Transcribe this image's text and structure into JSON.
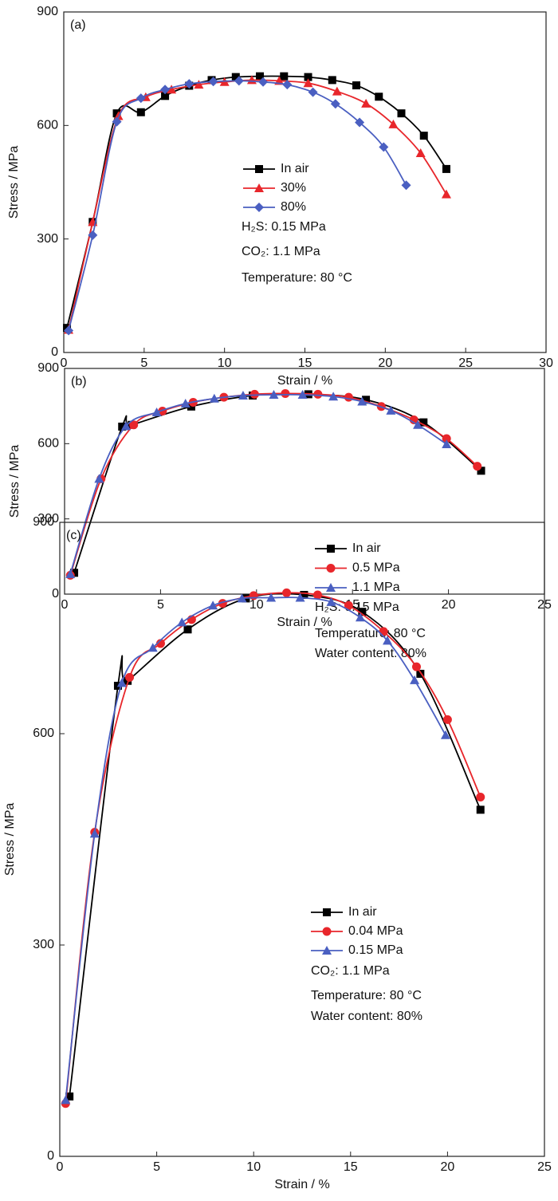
{
  "chart_data": [
    {
      "type": "line",
      "annotation": "(a)",
      "x_label": "Strain / %",
      "y_label": "Stress / MPa",
      "xlim": [
        0,
        30
      ],
      "xticks": [
        0,
        5,
        10,
        15,
        20,
        25,
        30
      ],
      "ylim": [
        0,
        900
      ],
      "yticks": [
        0,
        300,
        600,
        900
      ],
      "series": [
        {
          "name": "In air",
          "color": "#000000",
          "marker": "square",
          "x": [
            0.2,
            1.8,
            3.3,
            4.8,
            6.3,
            7.8,
            9.2,
            10.7,
            12.2,
            13.7,
            15.2,
            16.7,
            18.2,
            19.6,
            21.0,
            22.4,
            23.8
          ],
          "values": [
            65,
            345,
            632,
            635,
            678,
            705,
            720,
            728,
            730,
            730,
            728,
            720,
            706,
            676,
            632,
            573,
            485
          ]
        },
        {
          "name": "30%",
          "color": "#e8262b",
          "marker": "triangle",
          "x": [
            0.3,
            1.8,
            3.4,
            5.1,
            6.7,
            8.4,
            10.0,
            11.7,
            13.4,
            15.2,
            17.0,
            18.8,
            20.5,
            22.2,
            23.8
          ],
          "values": [
            60,
            345,
            625,
            675,
            695,
            708,
            715,
            720,
            718,
            712,
            690,
            658,
            603,
            527,
            418
          ]
        },
        {
          "name": "80%",
          "color": "#4a5fc1",
          "marker": "diamond",
          "x": [
            0.3,
            1.8,
            3.3,
            4.8,
            6.3,
            7.8,
            9.3,
            10.9,
            12.4,
            13.9,
            15.5,
            16.9,
            18.4,
            19.9,
            21.3
          ],
          "values": [
            58,
            310,
            610,
            672,
            695,
            710,
            716,
            718,
            715,
            708,
            688,
            657,
            608,
            543,
            442
          ]
        }
      ],
      "notes": [
        "H₂S: 0.15 MPa",
        "CO₂: 1.1 MPa",
        "Temperature: 80 °C"
      ]
    },
    {
      "type": "line",
      "annotation": "(b)",
      "x_label": "Strain / %",
      "y_label": "Stress / MPa",
      "xlim": [
        0,
        25
      ],
      "xticks": [
        0,
        5,
        10,
        15,
        20,
        25
      ],
      "ylim": [
        0,
        900
      ],
      "yticks": [
        0,
        300,
        600,
        900
      ],
      "series": [
        {
          "name": "In air",
          "color": "#000000",
          "marker": "square",
          "x": [
            0.5,
            3.0,
            3.5,
            6.6,
            9.8,
            12.7,
            15.7,
            18.7,
            21.7
          ],
          "values": [
            85,
            668,
            675,
            748,
            792,
            797,
            775,
            685,
            492
          ]
        },
        {
          "name": "0.5 MPa",
          "color": "#e8262b",
          "marker": "circle",
          "x": [
            0.3,
            1.9,
            3.6,
            5.1,
            6.7,
            8.3,
            9.9,
            11.5,
            13.2,
            14.8,
            16.5,
            18.2,
            19.9,
            21.5
          ],
          "values": [
            75,
            460,
            675,
            730,
            765,
            785,
            797,
            800,
            797,
            785,
            748,
            695,
            620,
            510
          ]
        },
        {
          "name": "1.1 MPa",
          "color": "#4a5fc1",
          "marker": "triangle",
          "x": [
            0.3,
            1.8,
            3.2,
            4.8,
            6.3,
            7.8,
            9.3,
            10.9,
            12.4,
            14.0,
            15.5,
            17.0,
            18.4,
            19.9
          ],
          "values": [
            80,
            460,
            670,
            725,
            760,
            780,
            792,
            795,
            795,
            788,
            768,
            732,
            675,
            598
          ]
        }
      ],
      "notes": [
        "H₂S: 0.15 MPa",
        "Temperature: 80 °C",
        "Water content: 80%"
      ]
    },
    {
      "type": "line",
      "annotation": "(c)",
      "x_label": "Strain / %",
      "y_label": "Stress / MPa",
      "xlim": [
        0,
        25
      ],
      "xticks": [
        0,
        5,
        10,
        15,
        20,
        25
      ],
      "ylim": [
        0,
        900
      ],
      "yticks": [
        0,
        300,
        600,
        900
      ],
      "series": [
        {
          "name": "In air",
          "color": "#000000",
          "marker": "square",
          "x": [
            0.5,
            3.0,
            3.5,
            6.6,
            9.6,
            12.6,
            15.6,
            18.6,
            21.7
          ],
          "values": [
            85,
            668,
            675,
            748,
            792,
            797,
            773,
            685,
            492
          ]
        },
        {
          "name": "0.04 MPa",
          "color": "#e8262b",
          "marker": "circle",
          "x": [
            0.3,
            1.8,
            3.6,
            5.2,
            6.8,
            8.4,
            10.0,
            11.7,
            13.3,
            14.9,
            16.7,
            18.4,
            20.0,
            21.7
          ],
          "values": [
            75,
            460,
            680,
            728,
            762,
            785,
            796,
            800,
            797,
            782,
            745,
            695,
            620,
            510
          ]
        },
        {
          "name": "0.15 MPa",
          "color": "#4a5fc1",
          "marker": "triangle",
          "x": [
            0.3,
            1.8,
            3.2,
            4.8,
            6.3,
            7.9,
            9.4,
            10.9,
            12.4,
            14.0,
            15.5,
            16.9,
            18.3,
            19.9
          ],
          "values": [
            80,
            458,
            672,
            722,
            758,
            782,
            792,
            793,
            793,
            787,
            765,
            732,
            676,
            598
          ]
        }
      ],
      "notes": [
        "CO₂: 1.1 MPa",
        "Temperature: 80 °C",
        "Water content: 80%"
      ]
    }
  ]
}
